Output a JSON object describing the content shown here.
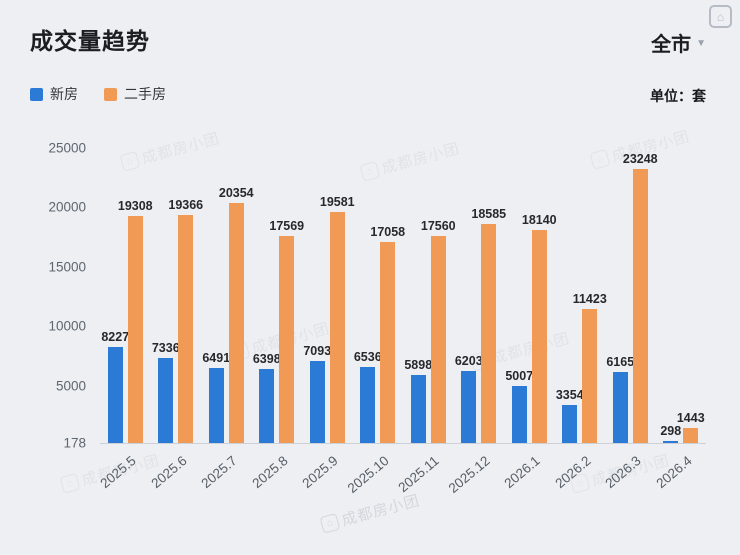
{
  "header": {
    "title": "成交量趋势",
    "scope": "全市"
  },
  "icons": {
    "scope_caret": "▼",
    "logo_house": "⌂"
  },
  "legend": [
    {
      "label": "新房",
      "color": "#2a7ad6"
    },
    {
      "label": "二手房",
      "color": "#f19a56"
    }
  ],
  "unit_label": "单位：套",
  "watermark": {
    "text": "成都房小团"
  },
  "chart_data": {
    "type": "bar",
    "title": "成交量趋势",
    "categories": [
      "2025.5",
      "2025.6",
      "2025.7",
      "2025.8",
      "2025.9",
      "2025.10",
      "2025.11",
      "2025.12",
      "2026.1",
      "2026.2",
      "2026.3",
      "2026.4"
    ],
    "series": [
      {
        "name": "新房",
        "color": "#2a7ad6",
        "values": [
          8227,
          7336,
          6491,
          6398,
          7093,
          6536,
          5898,
          6203,
          5007,
          3354,
          6165,
          298
        ]
      },
      {
        "name": "二手房",
        "color": "#f19a56",
        "values": [
          19308,
          19366,
          20354,
          17569,
          19581,
          17058,
          17560,
          18585,
          18140,
          11423,
          23248,
          1443
        ]
      }
    ],
    "y_ticks": [
      25000,
      20000,
      15000,
      10000,
      5000,
      178
    ],
    "ylim": [
      178,
      25000
    ],
    "xlabel": "",
    "ylabel": "",
    "unit": "套",
    "grid": false,
    "legend_position": "top-left",
    "value_labels": true
  }
}
